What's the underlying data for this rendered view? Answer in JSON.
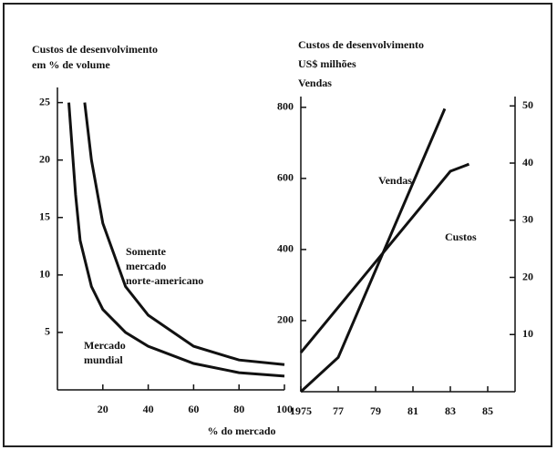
{
  "chart_data": [
    {
      "type": "line",
      "title": [
        "Custos de desenvolvimento",
        "em % de volume"
      ],
      "x_label": "% do mercado",
      "xlim": [
        0,
        100
      ],
      "xticks": [
        20,
        40,
        60,
        80,
        100
      ],
      "ylim": [
        0,
        26
      ],
      "yticks": [
        5,
        10,
        15,
        20,
        25
      ],
      "series": [
        {
          "name": [
            "Somente",
            "mercado",
            "norte-americano"
          ],
          "color": "#111111",
          "x": [
            12,
            15,
            20,
            30,
            40,
            60,
            80,
            100
          ],
          "values": [
            25,
            20,
            14.5,
            9,
            6.5,
            3.8,
            2.6,
            2.2
          ]
        },
        {
          "name": [
            "Mercado",
            "mundial"
          ],
          "color": "#111111",
          "x": [
            5,
            8,
            10,
            15,
            20,
            30,
            40,
            60,
            80,
            100
          ],
          "values": [
            25,
            17,
            13,
            9,
            7,
            5,
            3.8,
            2.3,
            1.5,
            1.2
          ]
        }
      ]
    },
    {
      "type": "line",
      "title": [
        "Custos de desenvolvimento",
        "US$ milhões",
        "Vendas"
      ],
      "xlim": [
        1975,
        1985
      ],
      "xticks": [
        {
          "value": 1975,
          "label": "1975"
        },
        {
          "value": 1977,
          "label": "77"
        },
        {
          "value": 1979,
          "label": "79"
        },
        {
          "value": 1981,
          "label": "81"
        },
        {
          "value": 1983,
          "label": "83"
        },
        {
          "value": 1985,
          "label": "85"
        }
      ],
      "ylim": [
        0,
        820
      ],
      "yticks": [
        200,
        400,
        600,
        800
      ],
      "y2lim": [
        0,
        51
      ],
      "y2ticks": [
        10,
        20,
        30,
        40,
        50
      ],
      "series": [
        {
          "name": "Vendas",
          "color": "#111111",
          "axis": "y2",
          "x": [
            1975,
            1977,
            1982.7
          ],
          "values": [
            0,
            6,
            49.5
          ]
        },
        {
          "name": "Custos",
          "color": "#111111",
          "x": [
            1975,
            1983,
            1984
          ],
          "values": [
            110,
            620,
            640
          ]
        }
      ]
    }
  ]
}
